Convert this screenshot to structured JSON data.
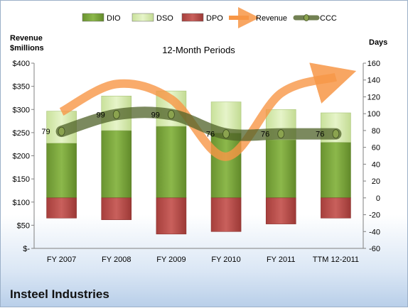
{
  "chart_data": {
    "type": "bar",
    "title": "12-Month Periods",
    "left_axis_label_line1": "Revenue",
    "left_axis_label_line2": "$millions",
    "right_axis_label": "Days",
    "company": "Insteel Industries",
    "categories": [
      "FY 2007",
      "FY 2008",
      "FY 2009",
      "FY 2010",
      "FY 2011",
      "TTM 12-2011"
    ],
    "left_axis": {
      "min": 0,
      "max": 400,
      "step": 50,
      "ticks": [
        "$-",
        "$50",
        "$100",
        "$150",
        "$200",
        "$250",
        "$300",
        "$350",
        "$400"
      ]
    },
    "right_axis": {
      "min": -60,
      "max": 160,
      "step": 20,
      "ticks": [
        "-60",
        "-40",
        "-20",
        "0",
        "20",
        "40",
        "60",
        "80",
        "100",
        "120",
        "140",
        "160"
      ]
    },
    "legend": [
      "DIO",
      "DSO",
      "DPO",
      "Revenue",
      "CCC"
    ],
    "legend_placement": "top",
    "series": [
      {
        "name": "DIO",
        "axis": "right",
        "values": [
          65,
          80,
          85,
          77,
          69,
          66
        ]
      },
      {
        "name": "DSO",
        "axis": "right",
        "values": [
          38,
          41,
          42,
          37,
          36,
          35
        ]
      },
      {
        "name": "DPO",
        "axis": "right",
        "values": [
          -24,
          -26,
          -43,
          -40,
          -31,
          -24
        ]
      },
      {
        "name": "Revenue",
        "axis": "left",
        "values": [
          295,
          355,
          322,
          198,
          335,
          370
        ]
      },
      {
        "name": "CCC",
        "axis": "right",
        "values": [
          79,
          99,
          99,
          76,
          76,
          76
        ],
        "labels": [
          "79",
          "99",
          "99",
          "76",
          "76",
          "76"
        ]
      }
    ],
    "colors": {
      "DIO": "#7aa33a",
      "DSO": "#d6ecae",
      "DPO": "#c0504d",
      "Revenue": "#f79646",
      "CCC": "#4f6228"
    }
  }
}
